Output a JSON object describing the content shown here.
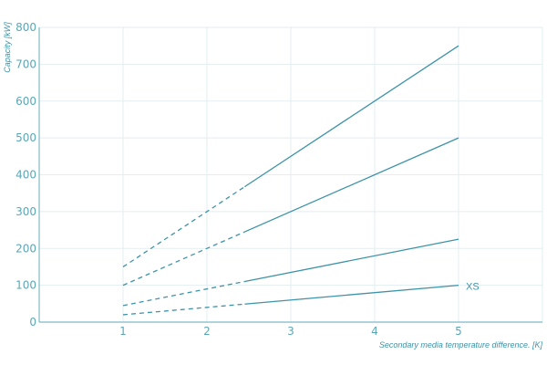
{
  "colors": {
    "line": "#3d93a8",
    "text": "#5aa6b8",
    "grid": "#e3eef1",
    "axis": "#7fb9c8"
  },
  "chart_data": {
    "type": "line",
    "title": "",
    "xlabel": "Secondary media temperature difference. [K]",
    "ylabel": "Capacity [kW]",
    "xlim": [
      0,
      6
    ],
    "ylim": [
      0,
      800
    ],
    "xticks": [
      "1",
      "2",
      "3",
      "4",
      "5"
    ],
    "yticks": [
      "0",
      "100",
      "200",
      "300",
      "400",
      "500",
      "600",
      "700",
      "800"
    ],
    "grid": true,
    "dashed_below_x": 2.45,
    "series": [
      {
        "label": "XS",
        "x": [
          1,
          5
        ],
        "values": [
          20,
          100
        ]
      },
      {
        "x": [
          1,
          5
        ],
        "values": [
          45,
          225
        ]
      },
      {
        "x": [
          1,
          5
        ],
        "values": [
          100,
          500
        ]
      },
      {
        "x": [
          1,
          5
        ],
        "values": [
          150,
          750
        ]
      }
    ]
  }
}
